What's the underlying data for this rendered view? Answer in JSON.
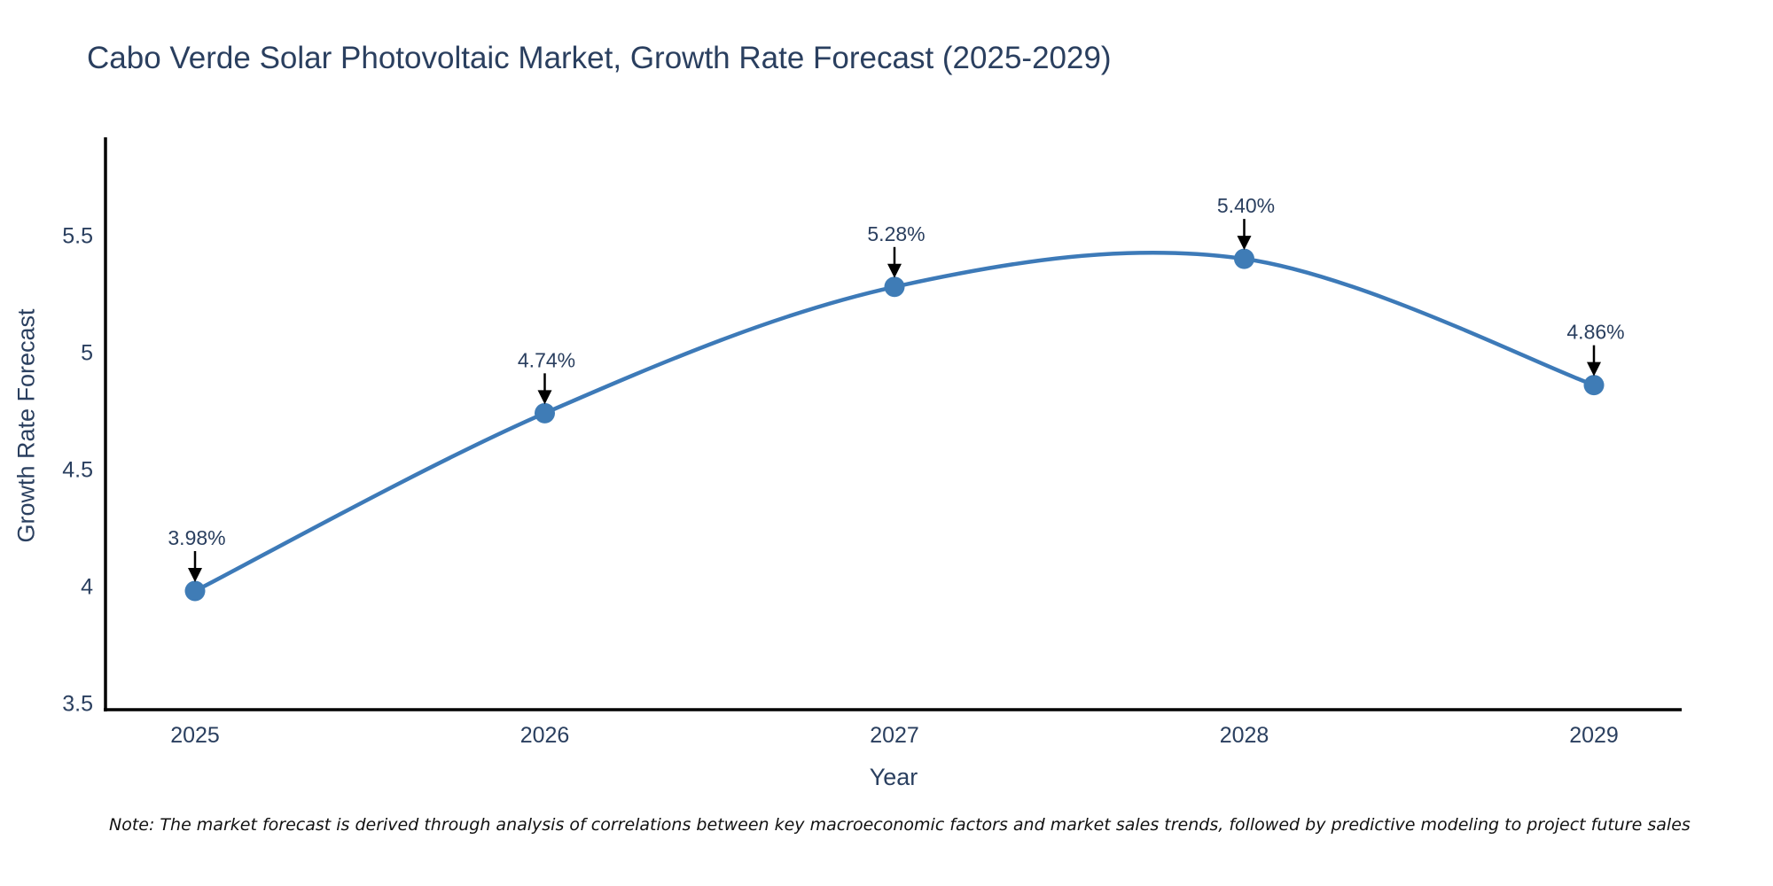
{
  "chart_data": {
    "type": "line",
    "title": "Cabo Verde Solar Photovoltaic Market, Growth Rate Forecast (2025-2029)",
    "xlabel": "Year",
    "ylabel": "Growth Rate Forecast",
    "categories": [
      "2025",
      "2026",
      "2027",
      "2028",
      "2029"
    ],
    "values": [
      3.98,
      4.74,
      5.28,
      5.4,
      4.86
    ],
    "point_labels": [
      "3.98%",
      "4.74%",
      "5.28%",
      "5.40%",
      "4.86%"
    ],
    "yticks": [
      3.5,
      4,
      4.5,
      5,
      5.5
    ],
    "ylim": [
      3.48,
      5.92
    ],
    "grid": false,
    "legend_position": "none",
    "line_color": "#3d7ab8",
    "marker_color": "#3f7cb6",
    "arrow_color": "#000000",
    "axis_color": "#000000",
    "label_color": "#2a3f5f"
  },
  "note": "Note: The market forecast is derived through analysis of correlations between key macroeconomic factors and market sales trends, followed by predictive modeling to project future sales"
}
